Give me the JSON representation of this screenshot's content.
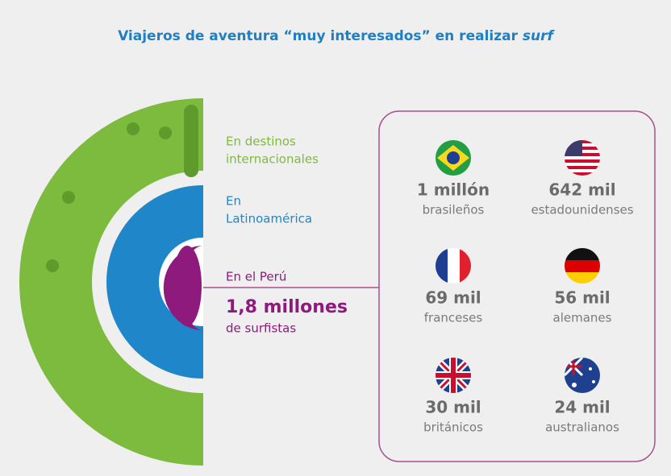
{
  "title": {
    "text": "Viajeros de aventura “muy interesados” en realizar",
    "emphasis": "surf"
  },
  "rings": [
    {
      "label": [
        "En destinos",
        "internacionales"
      ]
    },
    {
      "label": [
        "En",
        "Latinoamérica"
      ]
    },
    {
      "label": [
        "En el Perú"
      ],
      "highlight": "1,8 millones",
      "caption": "de surfistas"
    }
  ],
  "countries": [
    {
      "amount": "1 millón",
      "nationality": "brasileños"
    },
    {
      "amount": "642 mil",
      "nationality": "estadounidenses"
    },
    {
      "amount": "69 mil",
      "nationality": "franceses"
    },
    {
      "amount": "56 mil",
      "nationality": "alemanes"
    },
    {
      "amount": "30 mil",
      "nationality": "británicos"
    },
    {
      "amount": "24 mil",
      "nationality": "australianos"
    }
  ]
}
